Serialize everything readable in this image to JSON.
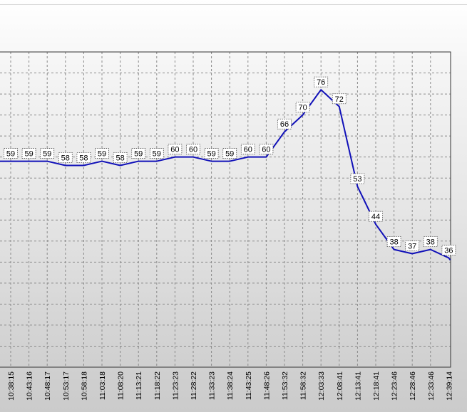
{
  "chart_data": {
    "type": "line",
    "categories": [
      "10:38:15",
      "10:43:16",
      "10:48:17",
      "10:53:17",
      "10:58:18",
      "11:03:18",
      "11:08:20",
      "11:13:21",
      "11:18:22",
      "11:23:23",
      "11:28:22",
      "11:33:23",
      "11:38:24",
      "11:43:25",
      "11:48:26",
      "11:53:32",
      "11:58:32",
      "12:03:33",
      "12:08:41",
      "12:13:41",
      "12:18:41",
      "12:23:46",
      "12:28:46",
      "12:33:46",
      "12:39:14"
    ],
    "series": [
      {
        "values": [
          59,
          59,
          59,
          58,
          58,
          59,
          58,
          59,
          59,
          60,
          60,
          59,
          59,
          60,
          60,
          66,
          70,
          76,
          72,
          53,
          44,
          38,
          37,
          38,
          36
        ],
        "color": "#1010b8"
      }
    ],
    "leading_value": 59,
    "data_labels": true,
    "grid": true,
    "grid_style": "dashed",
    "legend": "none",
    "ylim": [
      10,
      85
    ],
    "y_tick_step": 5
  }
}
